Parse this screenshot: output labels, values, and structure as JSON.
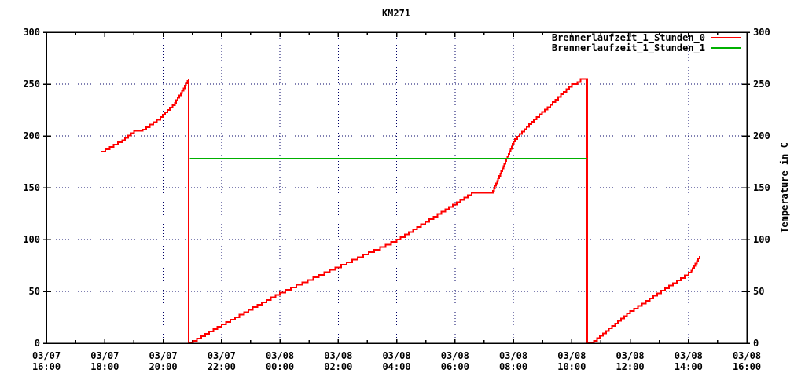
{
  "window": {
    "background": "#ffffff"
  },
  "chart_data": {
    "type": "line",
    "title": "KM271",
    "grid": true,
    "grid_color": "#000066",
    "legend_position": "top-right-inside",
    "x_axis": {
      "unit": "time",
      "hours_span": 24,
      "major_interval_hours": 2,
      "minor_interval_hours": 1,
      "tick_labels": [
        {
          "date": "03/07",
          "time": "16:00"
        },
        {
          "date": "03/07",
          "time": "18:00"
        },
        {
          "date": "03/07",
          "time": "20:00"
        },
        {
          "date": "03/07",
          "time": "22:00"
        },
        {
          "date": "03/08",
          "time": "00:00"
        },
        {
          "date": "03/08",
          "time": "02:00"
        },
        {
          "date": "03/08",
          "time": "04:00"
        },
        {
          "date": "03/08",
          "time": "06:00"
        },
        {
          "date": "03/08",
          "time": "08:00"
        },
        {
          "date": "03/08",
          "time": "10:00"
        },
        {
          "date": "03/08",
          "time": "12:00"
        },
        {
          "date": "03/08",
          "time": "14:00"
        },
        {
          "date": "03/08",
          "time": "16:00"
        }
      ]
    },
    "y_axis": {
      "min": 0,
      "max": 300,
      "tick_step": 50,
      "tick_labels": [
        "0",
        "50",
        "100",
        "150",
        "200",
        "250",
        "300"
      ]
    },
    "y2_axis": {
      "label": "Temperature in C",
      "min": 0,
      "max": 300,
      "tick_labels": [
        "0",
        "50",
        "100",
        "150",
        "200",
        "250",
        "300"
      ]
    },
    "series": [
      {
        "name": "Brennerlaufzeit_1_Stunden_0",
        "color": "#ff0000",
        "style": "steps",
        "points_format": "[hours_after_first_tick, value]",
        "points": [
          [
            1.87,
            185
          ],
          [
            2.6,
            196
          ],
          [
            3.0,
            205
          ],
          [
            3.3,
            206
          ],
          [
            3.9,
            218
          ],
          [
            4.4,
            232
          ],
          [
            4.7,
            246
          ],
          [
            4.83,
            253
          ],
          [
            4.88,
            255
          ],
          [
            4.88,
            0
          ],
          [
            6.0,
            18
          ],
          [
            8.0,
            49
          ],
          [
            12.0,
            100
          ],
          [
            13.54,
            127
          ],
          [
            14.57,
            145
          ],
          [
            15.3,
            147
          ],
          [
            16.05,
            197
          ],
          [
            16.7,
            216
          ],
          [
            17.26,
            230
          ],
          [
            18.0,
            250
          ],
          [
            18.2,
            252
          ],
          [
            18.3,
            255
          ],
          [
            18.53,
            255
          ],
          [
            18.53,
            0
          ],
          [
            18.66,
            0
          ],
          [
            20.0,
            31
          ],
          [
            22.0,
            68
          ],
          [
            22.1,
            70
          ],
          [
            22.38,
            84
          ]
        ]
      },
      {
        "name": "Brennerlaufzeit_1_Stunden_1",
        "color": "#00b000",
        "style": "line",
        "points_format": "[hours_after_first_tick, value]",
        "points": [
          [
            4.92,
            178
          ],
          [
            18.53,
            178
          ]
        ]
      }
    ]
  }
}
